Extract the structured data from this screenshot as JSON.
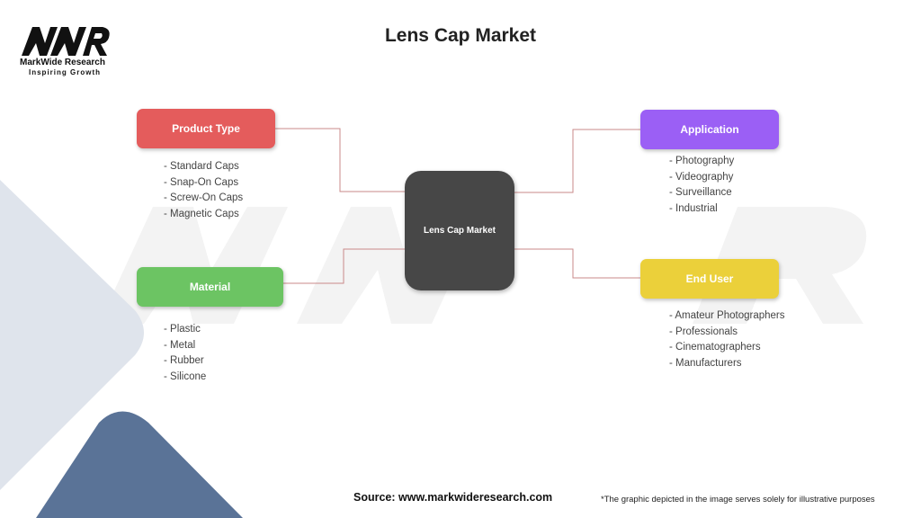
{
  "title": "Lens Cap Market",
  "logo": {
    "mark": "MWR",
    "name": "MarkWide Research",
    "tagline": "Inspiring Growth"
  },
  "center": {
    "label": "Lens Cap Market",
    "color": "#474747"
  },
  "branches": [
    {
      "label": "Product Type",
      "color": "#e45c5c",
      "items": [
        "- Standard Caps",
        "- Snap-On Caps",
        "- Screw-On Caps",
        "- Magnetic Caps"
      ]
    },
    {
      "label": "Material",
      "color": "#6cc463",
      "items": [
        "- Plastic",
        "- Metal",
        "- Rubber",
        "- Silicone"
      ]
    },
    {
      "label": "Application",
      "color": "#9b5ff5",
      "items": [
        "- Photography",
        "- Videography",
        "- Surveillance",
        "- Industrial"
      ]
    },
    {
      "label": "End User",
      "color": "#ebd03a",
      "items": [
        "- Amateur Photographers",
        "- Professionals",
        "- Cinematographers",
        "- Manufacturers"
      ]
    }
  ],
  "connector_color": "#c98a8a",
  "footer": {
    "source": "Source: www.markwideresearch.com",
    "note": "*The graphic depicted in the image serves solely for illustrative purposes"
  }
}
